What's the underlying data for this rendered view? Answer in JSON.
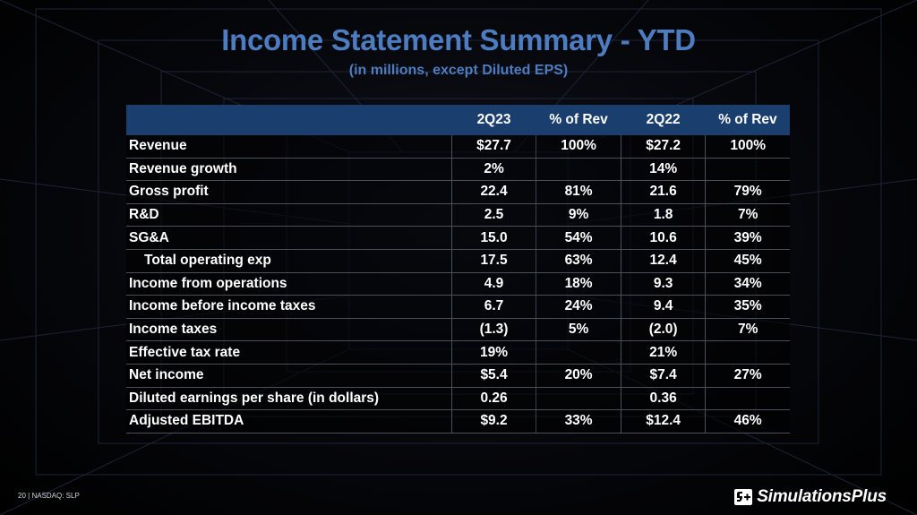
{
  "slide": {
    "title": "Income Statement Summary - YTD",
    "subtitle": "(in millions, except Diluted EPS)"
  },
  "table": {
    "headers": [
      "",
      "2Q23",
      "% of Rev",
      "2Q22",
      "% of Rev"
    ],
    "rows": [
      {
        "label": "Revenue",
        "q23": "$27.7",
        "q23_pct": "100%",
        "q22": "$27.2",
        "q22_pct": "100%"
      },
      {
        "label": "Revenue growth",
        "q23": "2%",
        "q23_pct": "",
        "q22": "14%",
        "q22_pct": ""
      },
      {
        "label": "Gross profit",
        "q23": "22.4",
        "q23_pct": "81%",
        "q22": "21.6",
        "q22_pct": "79%"
      },
      {
        "label": "R&D",
        "q23": "2.5",
        "q23_pct": "9%",
        "q22": "1.8",
        "q22_pct": "7%"
      },
      {
        "label": "SG&A",
        "q23": "15.0",
        "q23_pct": "54%",
        "q22": "10.6",
        "q22_pct": "39%"
      },
      {
        "label": "Total operating exp",
        "q23": "17.5",
        "q23_pct": "63%",
        "q22": "12.4",
        "q22_pct": "45%"
      },
      {
        "label": "Income from operations",
        "q23": "4.9",
        "q23_pct": "18%",
        "q22": "9.3",
        "q22_pct": "34%"
      },
      {
        "label": "Income before income taxes",
        "q23": "6.7",
        "q23_pct": "24%",
        "q22": "9.4",
        "q22_pct": "35%"
      },
      {
        "label": "Income taxes",
        "q23": "(1.3)",
        "q23_pct": "5%",
        "q22": "(2.0)",
        "q22_pct": "7%"
      },
      {
        "label": "Effective tax rate",
        "q23": "19%",
        "q23_pct": "",
        "q22": "21%",
        "q22_pct": ""
      },
      {
        "label": "Net income",
        "q23": "$5.4",
        "q23_pct": "20%",
        "q22": "$7.4",
        "q22_pct": "27%"
      },
      {
        "label": "Diluted earnings per share (in dollars)",
        "q23": "0.26",
        "q23_pct": "",
        "q22": "0.36",
        "q22_pct": ""
      },
      {
        "label": "Adjusted EBITDA",
        "q23": "$9.2",
        "q23_pct": "33%",
        "q22": "$12.4",
        "q22_pct": "46%"
      }
    ]
  },
  "footer": {
    "page_number": "20",
    "separator": "|",
    "ticker": "NASDAQ: SLP"
  },
  "logo": {
    "icon": "simulations-plus-logo-icon",
    "text": "SimulationsPlus"
  },
  "colors": {
    "title": "#4d7cc0",
    "header_bg": "#1a3e6e",
    "background": "#000000"
  }
}
